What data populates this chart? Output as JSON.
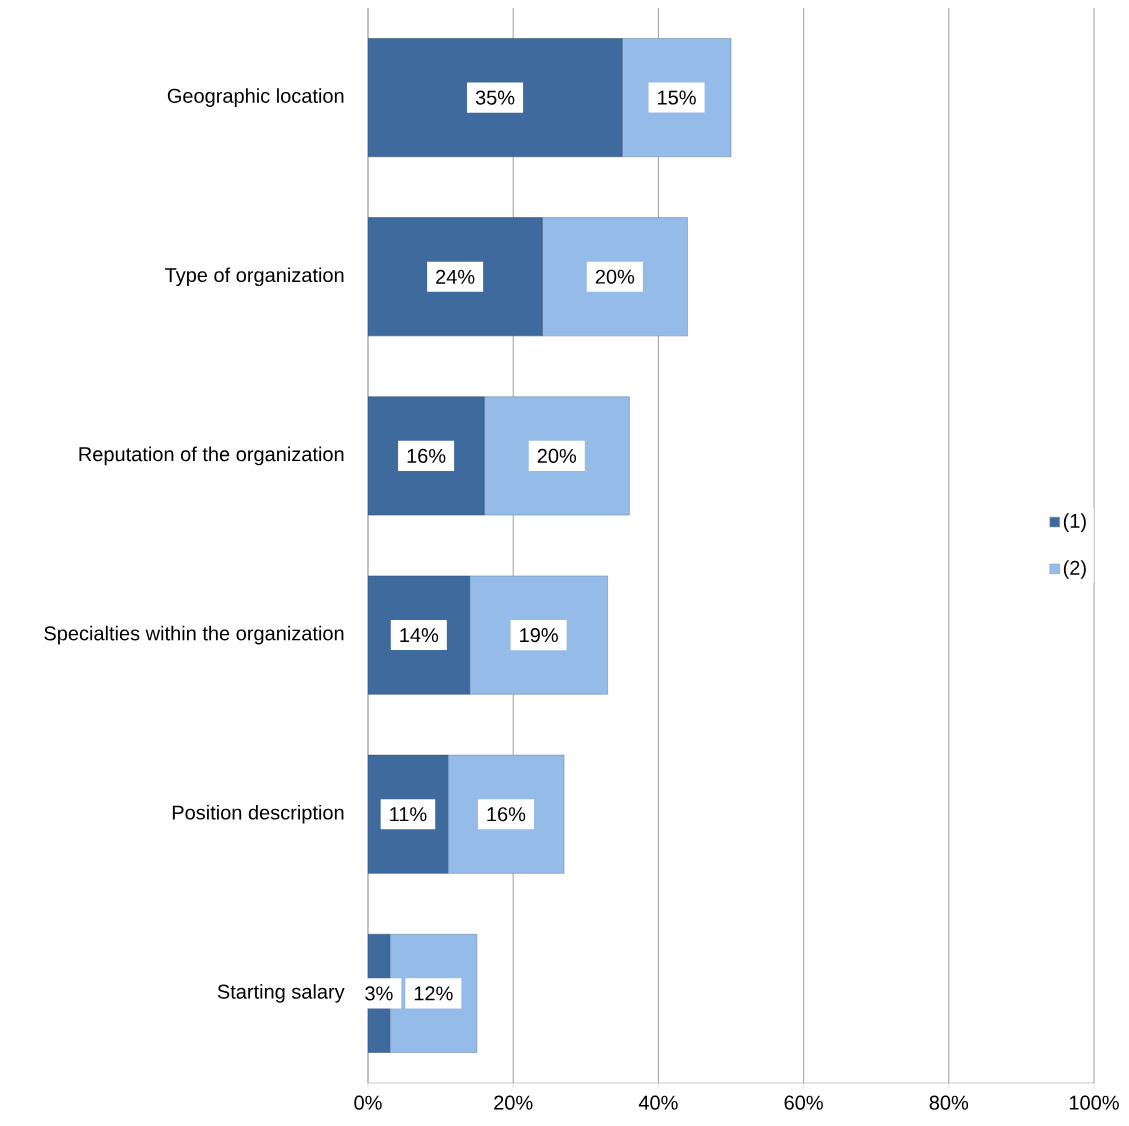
{
  "chart_data": {
    "type": "bar",
    "orientation": "horizontal",
    "stacked": true,
    "categories": [
      "Geographic location",
      "Type of organization",
      "Reputation of the organization",
      "Specialties within the organization",
      "Position description",
      "Starting salary"
    ],
    "series": [
      {
        "name": "(1)",
        "color": "#3f6a9e",
        "values": [
          35,
          24,
          16,
          14,
          11,
          3
        ],
        "value_labels": [
          "35%",
          "24%",
          "16%",
          "14%",
          "11%",
          "3%"
        ]
      },
      {
        "name": "(2)",
        "color": "#95bbe8",
        "values": [
          15,
          20,
          20,
          19,
          16,
          12
        ],
        "value_labels": [
          "15%",
          "20%",
          "20%",
          "19%",
          "16%",
          "12%"
        ]
      }
    ],
    "xlim": [
      0,
      100
    ],
    "xticks": [
      {
        "value": 0,
        "label": "0%"
      },
      {
        "value": 20,
        "label": "20%"
      },
      {
        "value": 40,
        "label": "40%"
      },
      {
        "value": 60,
        "label": "60%"
      },
      {
        "value": 80,
        "label": "80%"
      },
      {
        "value": 100,
        "label": "100%"
      }
    ],
    "grid": "x",
    "legend": "right"
  }
}
